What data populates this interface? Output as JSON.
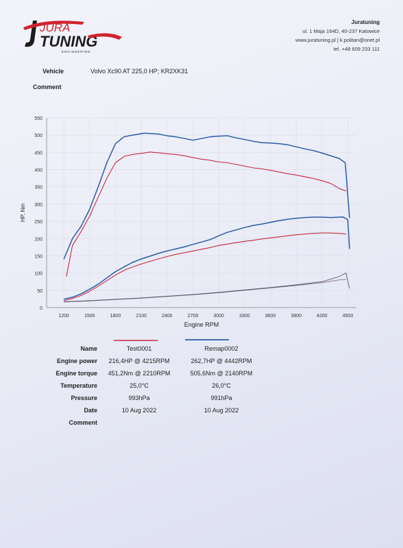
{
  "header": {
    "logo_text_top": "JURA",
    "logo_text_main": "TUNING",
    "logo_text_sub": "ENGINEERING",
    "company_name": "Juratuning",
    "address": "ul. 1 Maja 164D, 40-237 Katowice",
    "web": "www.juratuning.pl | k.politan@onet.pl",
    "phone": "tel. +48 609 233 111",
    "brand_red": "#d0242b",
    "brand_dark": "#1d1d1d"
  },
  "vehicle": {
    "label": "Vehicle",
    "value": "Volvo Xc90 AT 225,0 HP; KR2XK31"
  },
  "comment_top": {
    "label": "Comment"
  },
  "chart_data": {
    "type": "line",
    "xlabel": "Engine RPM",
    "ylabel": "HP, Nm",
    "xlim": [
      1000,
      4600
    ],
    "ylim": [
      0,
      550
    ],
    "x_ticks": [
      1200,
      1500,
      1800,
      2100,
      2400,
      2700,
      3000,
      3300,
      3600,
      3900,
      4200,
      4500
    ],
    "y_ticks": [
      0,
      50,
      100,
      150,
      200,
      250,
      300,
      350,
      400,
      450,
      500,
      550
    ],
    "grid": true,
    "series": [
      {
        "name": "Test0001",
        "quantity": "torque",
        "color": "#c8283a",
        "x": [
          1230,
          1300,
          1400,
          1500,
          1600,
          1700,
          1800,
          1900,
          2000,
          2100,
          2200,
          2300,
          2400,
          2500,
          2600,
          2700,
          2800,
          2900,
          3000,
          3100,
          3200,
          3300,
          3400,
          3500,
          3600,
          3700,
          3800,
          3900,
          4000,
          4100,
          4200,
          4300,
          4400,
          4480
        ],
        "y": [
          90,
          180,
          220,
          265,
          320,
          375,
          420,
          438,
          444,
          447,
          451,
          449,
          446,
          444,
          440,
          435,
          430,
          427,
          422,
          420,
          415,
          410,
          405,
          402,
          398,
          393,
          388,
          384,
          379,
          374,
          368,
          360,
          345,
          338
        ]
      },
      {
        "name": "Remap0002",
        "quantity": "torque",
        "color": "#2a5aa8",
        "x": [
          1200,
          1300,
          1400,
          1500,
          1600,
          1700,
          1800,
          1900,
          2000,
          2140,
          2300,
          2400,
          2500,
          2600,
          2700,
          2800,
          2900,
          3000,
          3100,
          3200,
          3300,
          3400,
          3500,
          3600,
          3700,
          3800,
          3900,
          4000,
          4100,
          4200,
          4300,
          4400,
          4470,
          4520
        ],
        "y": [
          140,
          200,
          235,
          285,
          350,
          420,
          475,
          495,
          500,
          505.6,
          503,
          498,
          495,
          490,
          485,
          490,
          495,
          497,
          498,
          492,
          487,
          482,
          478,
          477,
          475,
          472,
          466,
          460,
          455,
          448,
          440,
          432,
          420,
          260
        ]
      },
      {
        "name": "Test0001",
        "quantity": "power",
        "color": "#c8283a",
        "x": [
          1200,
          1300,
          1400,
          1500,
          1600,
          1700,
          1800,
          1900,
          2000,
          2100,
          2200,
          2300,
          2400,
          2500,
          2600,
          2700,
          2800,
          2900,
          3000,
          3100,
          3200,
          3300,
          3400,
          3500,
          3600,
          3700,
          3800,
          3900,
          4000,
          4100,
          4215,
          4300,
          4400,
          4480
        ],
        "y": [
          20,
          26,
          35,
          47,
          62,
          78,
          94,
          108,
          118,
          126,
          134,
          141,
          148,
          154,
          159,
          164,
          169,
          174,
          180,
          184,
          188,
          192,
          195,
          199,
          202,
          205,
          208,
          211,
          213,
          215,
          216.4,
          216,
          215,
          213
        ]
      },
      {
        "name": "Remap0002",
        "quantity": "power",
        "color": "#2a5aa8",
        "x": [
          1200,
          1300,
          1400,
          1500,
          1600,
          1700,
          1800,
          1900,
          2000,
          2100,
          2200,
          2300,
          2400,
          2500,
          2600,
          2700,
          2800,
          2900,
          3000,
          3100,
          3200,
          3300,
          3400,
          3500,
          3600,
          3700,
          3800,
          3900,
          4000,
          4100,
          4200,
          4300,
          4442,
          4500,
          4520
        ],
        "y": [
          24,
          30,
          40,
          53,
          68,
          86,
          104,
          118,
          131,
          141,
          149,
          157,
          164,
          170,
          176,
          183,
          190,
          197,
          208,
          218,
          225,
          232,
          238,
          242,
          247,
          252,
          256,
          259,
          261,
          262,
          262,
          261,
          262.7,
          255,
          170
        ]
      },
      {
        "name": "Test0001",
        "quantity": "loss",
        "color": "#8a6a6a",
        "x": [
          1200,
          1500,
          1800,
          2100,
          2400,
          2700,
          3000,
          3300,
          3600,
          3900,
          4200,
          4400,
          4480
        ],
        "y": [
          16,
          19,
          23,
          27,
          32,
          37,
          43,
          50,
          57,
          64,
          72,
          80,
          82
        ]
      },
      {
        "name": "Remap0002",
        "quantity": "loss",
        "color": "#3a4a6a",
        "x": [
          1200,
          1500,
          1800,
          2100,
          2400,
          2700,
          3000,
          3300,
          3600,
          3900,
          4200,
          4400,
          4480,
          4520
        ],
        "y": [
          17,
          20,
          24,
          28,
          33,
          38,
          44,
          51,
          58,
          66,
          75,
          90,
          100,
          55
        ]
      }
    ]
  },
  "results": {
    "legend": [
      {
        "name": "Test0001",
        "color": "#c8283a"
      },
      {
        "name": "Remap0002",
        "color": "#2a5aa8"
      }
    ],
    "name_label": "Name",
    "rows": [
      {
        "label": "Engine power",
        "v1": "216,4HP @ 4215RPM",
        "v2": "262,7HP @ 4442RPM"
      },
      {
        "label": "Engine torque",
        "v1": "451,2Nm @ 2210RPM",
        "v2": "505,6Nm @ 2140RPM"
      },
      {
        "label": "Temperature",
        "v1": "25,0°C",
        "v2": "26,0°C"
      },
      {
        "label": "Pressure",
        "v1": "993hPa",
        "v2": "991hPa"
      },
      {
        "label": "Date",
        "v1": "10 Aug 2022",
        "v2": "10 Aug 2022"
      }
    ],
    "comment_label": "Comment"
  }
}
